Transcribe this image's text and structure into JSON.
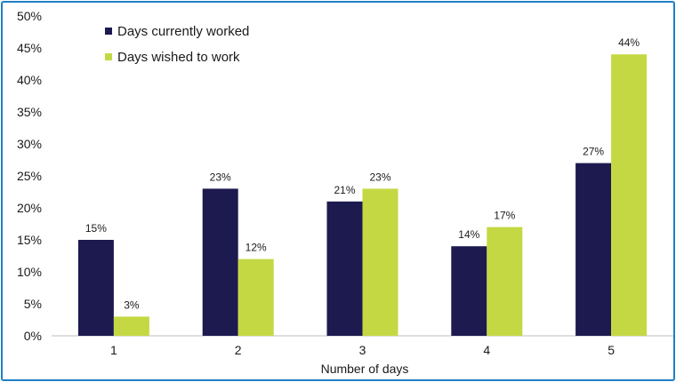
{
  "chart_data": {
    "type": "bar",
    "categories": [
      "1",
      "2",
      "3",
      "4",
      "5"
    ],
    "series": [
      {
        "name": "Days currently worked",
        "values": [
          15,
          23,
          21,
          14,
          27
        ],
        "color": "#1c1a4f"
      },
      {
        "name": "Days wished to work",
        "values": [
          3,
          12,
          23,
          17,
          44
        ],
        "color": "#c4d843"
      }
    ],
    "value_suffix": "%",
    "xlabel": "Number of days",
    "ylabel": "",
    "ylim": [
      0,
      50
    ],
    "yticks": [
      "0%",
      "5%",
      "10%",
      "15%",
      "20%",
      "25%",
      "30%",
      "35%",
      "40%",
      "45%",
      "50%"
    ],
    "legend_position": "top-left",
    "grid": false,
    "frame_color": "#1f7fc4"
  }
}
